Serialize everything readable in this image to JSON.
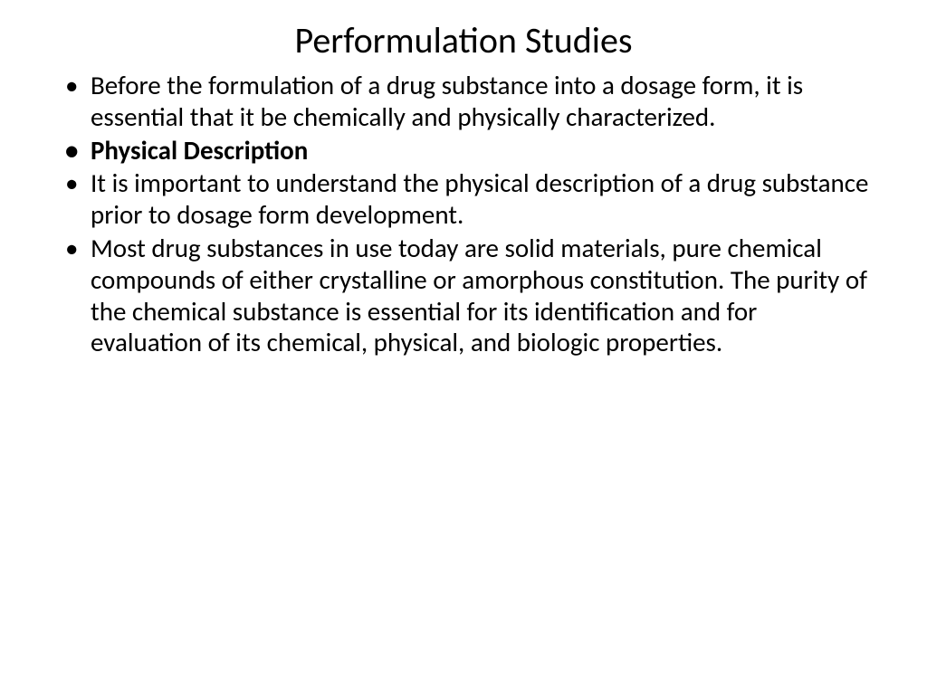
{
  "slide": {
    "title": "Performulation Studies",
    "title_fontsize": 40,
    "title_color": "#000000",
    "title_align": "center",
    "background_color": "#ffffff",
    "bullets": [
      {
        "text": "Before the formulation of a drug substance into a dosage form, it is essential that it be chemically and physically characterized.",
        "bold": false
      },
      {
        "text": "Physical Description",
        "bold": true
      },
      {
        "text": "It is important to understand the physical description of a drug substance prior to dosage form development.",
        "bold": false
      },
      {
        "text": "Most drug substances in use today are solid materials, pure chemical compounds of either crystalline or amorphous constitution. The purity of the chemical substance is essential for its identification and for evaluation of its chemical, physical, and biologic properties.",
        "bold": false
      }
    ],
    "body_fontsize": 29,
    "body_color": "#000000",
    "bullet_marker": "•"
  }
}
